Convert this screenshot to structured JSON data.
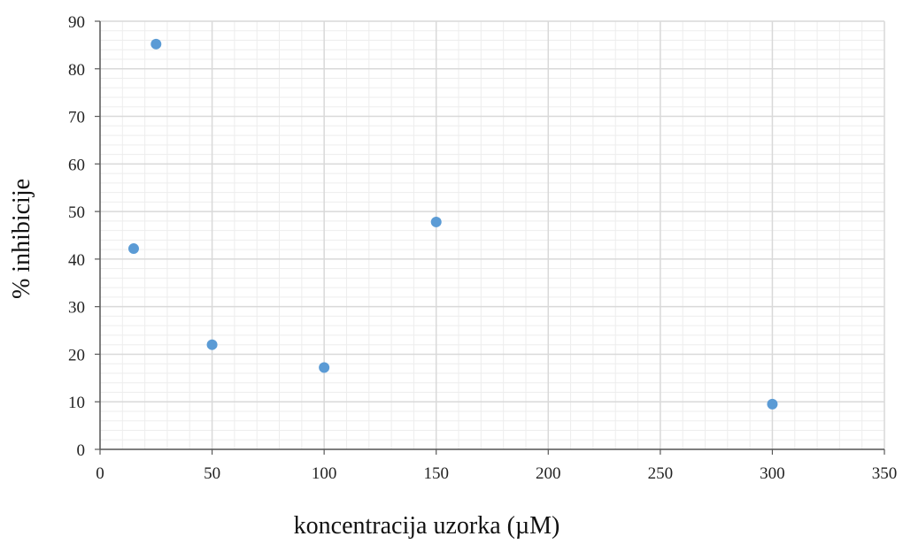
{
  "chart_data": {
    "type": "scatter",
    "title": "",
    "xlabel": "koncentracija uzorka (µM)",
    "ylabel": "% inhibicije",
    "xlim": [
      0,
      350
    ],
    "ylim": [
      0,
      90
    ],
    "xticks": [
      0,
      50,
      100,
      150,
      200,
      250,
      300,
      350
    ],
    "yticks": [
      0,
      10,
      20,
      30,
      40,
      50,
      60,
      70,
      80,
      90
    ],
    "grid": true,
    "minor_grid": true,
    "legend": "none",
    "colors": {
      "marker": "#5b9bd5",
      "major_grid": "#d9d9d9",
      "minor_grid": "#ededed",
      "axis": "#595959"
    },
    "series": [
      {
        "points": [
          {
            "x": 15,
            "y": 42.2
          },
          {
            "x": 25,
            "y": 85.2
          },
          {
            "x": 50,
            "y": 22
          },
          {
            "x": 100,
            "y": 17.2
          },
          {
            "x": 150,
            "y": 47.8
          },
          {
            "x": 300,
            "y": 9.5
          }
        ]
      }
    ]
  }
}
